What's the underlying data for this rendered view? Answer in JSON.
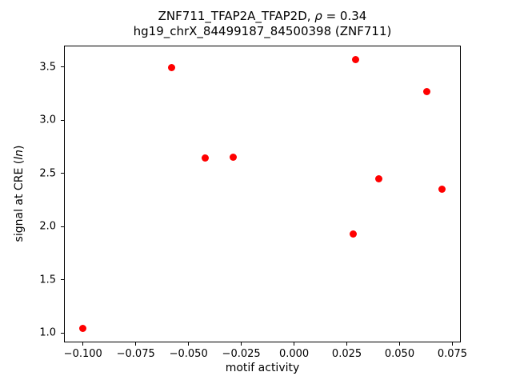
{
  "figure": {
    "title_prefix": "ZNF711_TFAP2A_TFAP2D, ",
    "title_rho": "ρ",
    "title_rest": " = 0.34",
    "title_line2": "hg19_chrX_84499187_84500398 (ZNF711)",
    "xlabel": "motif activity",
    "ylabel_prefix": "signal at CRE (",
    "ylabel_italic": "ln",
    "ylabel_suffix": ")"
  },
  "chart_data": {
    "type": "scatter",
    "title": "ZNF711_TFAP2A_TFAP2D, ρ = 0.34\nhg19_chrX_84499187_84500398 (ZNF711)",
    "xlabel": "motif activity",
    "ylabel": "signal at CRE (ln)",
    "marker_color": "#ff0000",
    "marker_style": "circle",
    "grid": false,
    "legend": "none",
    "xlim": [
      -0.109,
      0.079
    ],
    "ylim": [
      0.91,
      3.7
    ],
    "x": [
      -0.1,
      -0.058,
      -0.042,
      -0.029,
      0.029,
      0.028,
      0.04,
      0.063,
      0.07
    ],
    "y": [
      1.04,
      3.49,
      2.64,
      2.65,
      3.57,
      1.93,
      2.45,
      3.27,
      2.35
    ],
    "xticks": [
      {
        "value": -0.1,
        "label": "−0.100"
      },
      {
        "value": -0.075,
        "label": "−0.075"
      },
      {
        "value": -0.05,
        "label": "−0.050"
      },
      {
        "value": -0.025,
        "label": "−0.025"
      },
      {
        "value": 0.0,
        "label": "0.000"
      },
      {
        "value": 0.025,
        "label": "0.025"
      },
      {
        "value": 0.05,
        "label": "0.050"
      },
      {
        "value": 0.075,
        "label": "0.075"
      }
    ],
    "yticks": [
      {
        "value": 1.0,
        "label": "1.0"
      },
      {
        "value": 1.5,
        "label": "1.5"
      },
      {
        "value": 2.0,
        "label": "2.0"
      },
      {
        "value": 2.5,
        "label": "2.5"
      },
      {
        "value": 3.0,
        "label": "3.0"
      },
      {
        "value": 3.5,
        "label": "3.5"
      }
    ]
  }
}
